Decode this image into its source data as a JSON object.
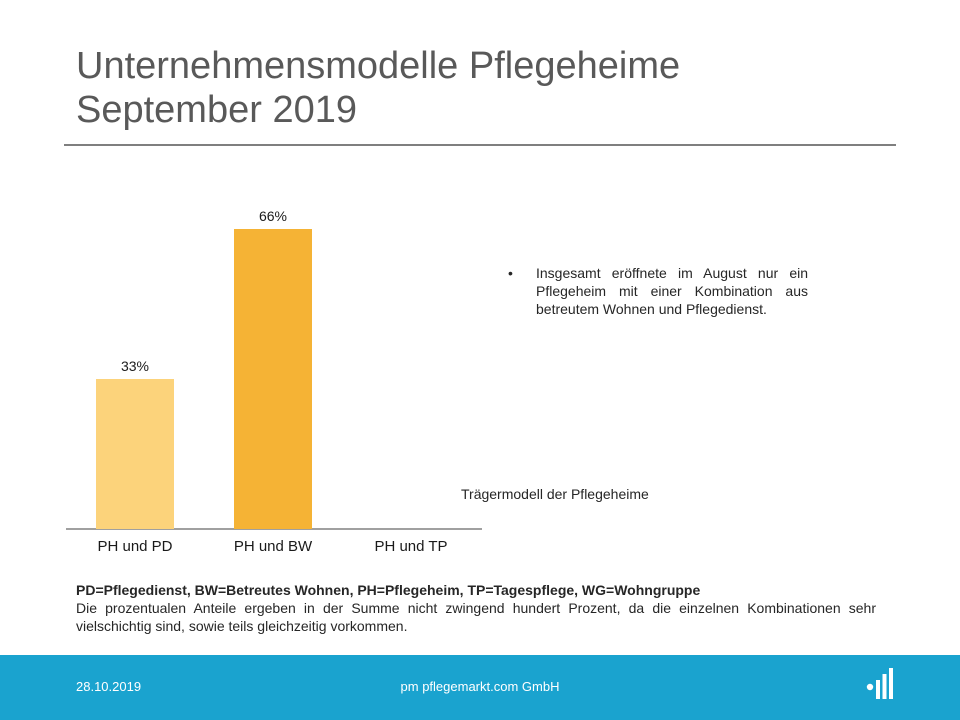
{
  "title": {
    "line1": "Unternehmensmodelle Pflegeheime",
    "line2": "September 2019"
  },
  "bullet": {
    "symbol": "•",
    "text": "Insgesamt eröffnete im August nur ein Pflegeheim mit einer Kombination aus betreutem Wohnen und Pflegedienst."
  },
  "chart_caption": "Trägermodell der Pflegeheime",
  "notes": {
    "abbreviations": "PD=Pflegedienst, BW=Betreutes Wohnen, PH=Pflegeheim, TP=Tagespflege, WG=Wohngruppe",
    "remark": "Die prozentualen Anteile ergeben in der Summe nicht zwingend hundert Prozent, da die einzelnen Kombinationen sehr vielschichtig sind, sowie teils gleichzeitig vorkommen."
  },
  "footer": {
    "date": "28.10.2019",
    "company": "pm pflegemarkt.com GmbH",
    "logo_icon": "pflegemarkt-logo-icon",
    "color": "#1aa3cf"
  },
  "chart_data": {
    "type": "bar",
    "categories": [
      "PH und PD",
      "PH und BW",
      "PH und TP"
    ],
    "values": [
      33,
      66,
      0
    ],
    "data_labels": [
      "33%",
      "66%",
      ""
    ],
    "colors": [
      "#fcd37b",
      "#f5b335",
      "#f5b335"
    ],
    "title": "",
    "xlabel": "",
    "ylabel": "",
    "ylim": [
      0,
      70
    ],
    "grid": false,
    "legend": "none"
  }
}
